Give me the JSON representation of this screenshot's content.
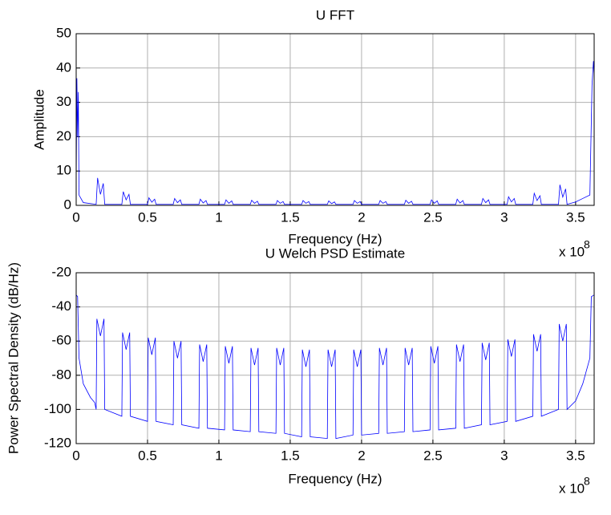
{
  "chart_data": [
    {
      "type": "line",
      "title": "U FFT",
      "x_label": "Frequency (Hz)",
      "y_label": "Amplitude",
      "x_exponent": "x 10",
      "x_exponent_power": "8",
      "xlim": [
        0,
        363000000.0
      ],
      "ylim": [
        0,
        50
      ],
      "xticks": [
        0,
        {
          "value": 50000000.0,
          "label": "0.5"
        },
        {
          "value": 100000000.0,
          "label": "1"
        },
        {
          "value": 150000000.0,
          "label": "1.5"
        },
        {
          "value": 200000000.0,
          "label": "2"
        },
        {
          "value": 250000000.0,
          "label": "2.5"
        },
        {
          "value": 300000000.0,
          "label": "3"
        },
        {
          "value": 350000000.0,
          "label": "3.5"
        }
      ],
      "yticks": [
        0,
        10,
        20,
        30,
        40,
        50
      ],
      "grid": true,
      "series": [
        {
          "color": "#0000ff",
          "x": [
            0,
            500000.0,
            1000000.0,
            1500000.0,
            2000000.0,
            5000000.0,
            14000000.0,
            15000000.0,
            17000000.0,
            19000000.0,
            20000000.0,
            32000000.0,
            33000000.0,
            35000000.0,
            37000000.0,
            38000000.0,
            50000000.0,
            51000000.0,
            53000000.0,
            55000000.0,
            56000000.0,
            68000000.0,
            69000000.0,
            71000000.0,
            73000000.0,
            74000000.0,
            86000000.0,
            87000000.0,
            89000000.0,
            91000000.0,
            92000000.0,
            104000000.0,
            105000000.0,
            107000000.0,
            109000000.0,
            110000000.0,
            122000000.0,
            123000000.0,
            125000000.0,
            127000000.0,
            128000000.0,
            140000000.0,
            141000000.0,
            143000000.0,
            145000000.0,
            146000000.0,
            158000000.0,
            159000000.0,
            161000000.0,
            163000000.0,
            164000000.0,
            176000000.0,
            177000000.0,
            179000000.0,
            181000000.0,
            182000000.0,
            194000000.0,
            195000000.0,
            197000000.0,
            199000000.0,
            200000000.0,
            212000000.0,
            213000000.0,
            215000000.0,
            217000000.0,
            218000000.0,
            230000000.0,
            231000000.0,
            233000000.0,
            235000000.0,
            236000000.0,
            248000000.0,
            249000000.0,
            251000000.0,
            253000000.0,
            254000000.0,
            266000000.0,
            267000000.0,
            269000000.0,
            271000000.0,
            272000000.0,
            284000000.0,
            285000000.0,
            287000000.0,
            289000000.0,
            290000000.0,
            302000000.0,
            303000000.0,
            305000000.0,
            307000000.0,
            308000000.0,
            320000000.0,
            321000000.0,
            323000000.0,
            325000000.0,
            326000000.0,
            338000000.0,
            339000000.0,
            341000000.0,
            343000000.0,
            344000000.0,
            350000000.0,
            355000000.0,
            360000000.0,
            361500000.0,
            362500000.0,
            363000000.0
          ],
          "values": [
            5,
            37,
            20,
            33,
            3,
            0.8,
            0.3,
            8,
            3.2,
            6.4,
            0.3,
            0.3,
            4,
            1.6,
            3.2,
            0.3,
            0.3,
            2.2,
            0.9,
            1.8,
            0.3,
            0.3,
            2,
            0.8,
            1.6,
            0.3,
            0.3,
            1.8,
            0.7,
            1.4,
            0.3,
            0.3,
            1.6,
            0.6,
            1.3,
            0.3,
            0.3,
            1.5,
            0.6,
            1.2,
            0.3,
            0.3,
            1.4,
            0.6,
            1.1,
            0.3,
            0.3,
            1.4,
            0.6,
            1.1,
            0.3,
            0.3,
            1.3,
            0.5,
            1,
            0.3,
            0.3,
            1.4,
            0.6,
            1.1,
            0.3,
            0.3,
            1.4,
            0.6,
            1.1,
            0.3,
            0.3,
            1.5,
            0.6,
            1.2,
            0.3,
            0.3,
            1.6,
            0.6,
            1.3,
            0.3,
            0.3,
            1.8,
            0.7,
            1.4,
            0.3,
            0.3,
            2,
            0.8,
            1.6,
            0.3,
            0.3,
            2.5,
            1,
            2,
            0.3,
            0.3,
            3.5,
            1.4,
            2.8,
            0.3,
            0.3,
            6,
            2.4,
            4.8,
            0.3,
            1,
            2,
            3,
            35,
            42,
            38
          ]
        }
      ]
    },
    {
      "type": "line",
      "title": "U Welch PSD Estimate",
      "x_label": "Frequency (Hz)",
      "y_label": "Power Spectral Density (dB/Hz)",
      "x_exponent": "x 10",
      "x_exponent_power": "8",
      "xlim": [
        0,
        363000000.0
      ],
      "ylim": [
        -120,
        -20
      ],
      "xticks": [
        0,
        {
          "value": 50000000.0,
          "label": "0.5"
        },
        {
          "value": 100000000.0,
          "label": "1"
        },
        {
          "value": 150000000.0,
          "label": "1.5"
        },
        {
          "value": 200000000.0,
          "label": "2"
        },
        {
          "value": 250000000.0,
          "label": "2.5"
        },
        {
          "value": 300000000.0,
          "label": "3"
        },
        {
          "value": 350000000.0,
          "label": "3.5"
        }
      ],
      "yticks": [
        -120,
        -100,
        -80,
        -60,
        -40,
        -20
      ],
      "grid": true,
      "series": [
        {
          "color": "#0000ff",
          "x": [
            0,
            1000000.0,
            2000000.0,
            5000000.0,
            10000000.0,
            13000000.0,
            14000000.0,
            14500000.0,
            17000000.0,
            19500000.0,
            20000000.0,
            32000000.0,
            32500000.0,
            35000000.0,
            37500000.0,
            38000000.0,
            50000000.0,
            50500000.0,
            53000000.0,
            55500000.0,
            56000000.0,
            68000000.0,
            68500000.0,
            71000000.0,
            73500000.0,
            74000000.0,
            86000000.0,
            86500000.0,
            89000000.0,
            91500000.0,
            92000000.0,
            104000000.0,
            104500000.0,
            107000000.0,
            109500000.0,
            110000000.0,
            122000000.0,
            122500000.0,
            125000000.0,
            127500000.0,
            128000000.0,
            140000000.0,
            140500000.0,
            143000000.0,
            145500000.0,
            146000000.0,
            158000000.0,
            158500000.0,
            161000000.0,
            163500000.0,
            164000000.0,
            176000000.0,
            176500000.0,
            179000000.0,
            181500000.0,
            182000000.0,
            194000000.0,
            194500000.0,
            197000000.0,
            199500000.0,
            200000000.0,
            212000000.0,
            212500000.0,
            215000000.0,
            217500000.0,
            218000000.0,
            230000000.0,
            230500000.0,
            233000000.0,
            235500000.0,
            236000000.0,
            248000000.0,
            248500000.0,
            251000000.0,
            253500000.0,
            254000000.0,
            266000000.0,
            266500000.0,
            269000000.0,
            271500000.0,
            272000000.0,
            284000000.0,
            284500000.0,
            287000000.0,
            289500000.0,
            290000000.0,
            302000000.0,
            302500000.0,
            305000000.0,
            307500000.0,
            308000000.0,
            320000000.0,
            320500000.0,
            323000000.0,
            325500000.0,
            326000000.0,
            338000000.0,
            338500000.0,
            341000000.0,
            343500000.0,
            344000000.0,
            350000000.0,
            355000000.0,
            360000000.0,
            361000000.0,
            363000000.0
          ],
          "values": [
            -33,
            -34,
            -70,
            -85,
            -93,
            -96,
            -100,
            -47,
            -57,
            -47,
            -100,
            -104,
            -55,
            -65,
            -55,
            -104,
            -107,
            -58,
            -68,
            -58,
            -107,
            -109,
            -60,
            -70,
            -60,
            -109,
            -111,
            -62,
            -72,
            -62,
            -111,
            -112,
            -63,
            -73,
            -63,
            -112,
            -113,
            -64,
            -74,
            -64,
            -113,
            -114,
            -64,
            -74,
            -64,
            -114,
            -116,
            -65,
            -75,
            -65,
            -116,
            -117,
            -65,
            -75,
            -65,
            -117,
            -115,
            -65,
            -75,
            -65,
            -115,
            -114,
            -64,
            -74,
            -64,
            -114,
            -113,
            -64,
            -74,
            -64,
            -113,
            -112,
            -63,
            -73,
            -63,
            -112,
            -111,
            -62,
            -72,
            -62,
            -111,
            -109,
            -61,
            -71,
            -61,
            -109,
            -107,
            -59,
            -69,
            -59,
            -107,
            -104,
            -56,
            -66,
            -56,
            -104,
            -100,
            -50,
            -60,
            -50,
            -100,
            -95,
            -85,
            -70,
            -34,
            -33
          ]
        }
      ]
    }
  ]
}
